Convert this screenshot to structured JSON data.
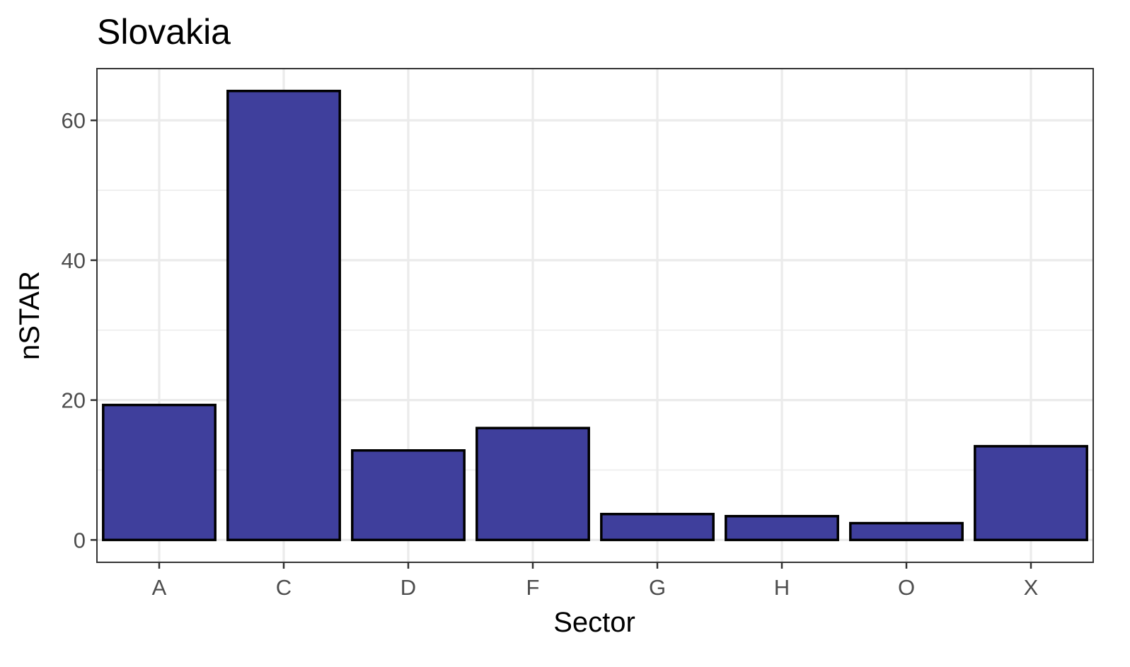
{
  "chart_data": {
    "type": "bar",
    "title": "Slovakia",
    "xlabel": "Sector",
    "ylabel": "nSTAR",
    "categories": [
      "A",
      "C",
      "D",
      "F",
      "G",
      "H",
      "O",
      "X"
    ],
    "values": [
      19.3,
      64.2,
      12.8,
      16.0,
      3.7,
      3.4,
      2.4,
      13.4
    ],
    "ylim": [
      -3.2,
      67.4
    ],
    "y_ticks": [
      0,
      20,
      40,
      60
    ],
    "y_tick_labels": [
      "0",
      "20",
      "40",
      "60"
    ],
    "grid": true,
    "legend": "none",
    "colors": {
      "bar_fill": "#3f3f9c",
      "bar_stroke": "#000000",
      "grid": "#ebebeb",
      "panel_border": "#333333",
      "tick_label": "#4d4d4d"
    }
  }
}
